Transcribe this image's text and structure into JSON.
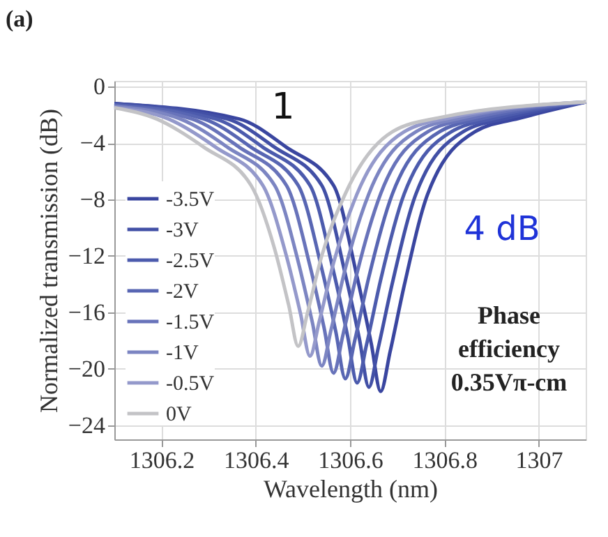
{
  "chart_data": {
    "type": "line",
    "title": "(a)",
    "xlabel": "Wavelength (nm)",
    "ylabel": "Normalized transmission (dB)",
    "xlim": [
      1306.1,
      1307.1
    ],
    "ylim": [
      -25,
      0.4
    ],
    "xticks": [
      1306.2,
      1306.4,
      1306.6,
      1306.8,
      1307
    ],
    "yticks": [
      0,
      -4,
      -8,
      -12,
      -16,
      -20,
      -24
    ],
    "grid": true,
    "legend": "left",
    "marker": "none",
    "line_style": "solid",
    "annotations": [
      "Phase efficiency 0.35Vπ-cm",
      "1",
      "4 dB"
    ],
    "series": [
      {
        "name": "-3.5V",
        "color": "#3a46a0",
        "x": [
          1306.1,
          1306.365,
          1306.465,
          1306.565,
          1306.615,
          1306.645,
          1306.665,
          1306.685,
          1306.715,
          1306.765,
          1306.865,
          1306.965,
          1307.1
        ],
        "values": [
          -1.2,
          -2.3,
          -4.3,
          -7,
          -13.5,
          -18.2,
          -21.6,
          -18.8,
          -14.1,
          -7.6,
          -3.2,
          -2.2,
          -1.1
        ]
      },
      {
        "name": "-3V",
        "color": "#4250a6",
        "x": [
          1306.1,
          1306.34,
          1306.44,
          1306.54,
          1306.59,
          1306.62,
          1306.64,
          1306.66,
          1306.69,
          1306.74,
          1306.84,
          1306.94,
          1307.1
        ],
        "values": [
          -1.2,
          -2.3,
          -4.3,
          -7,
          -13.3,
          -17.9,
          -21.3,
          -18.5,
          -13.9,
          -7.6,
          -3.2,
          -2.2,
          -1.1
        ]
      },
      {
        "name": "-2.5V",
        "color": "#4c5bad",
        "x": [
          1306.1,
          1306.315,
          1306.415,
          1306.515,
          1306.565,
          1306.595,
          1306.615,
          1306.635,
          1306.665,
          1306.715,
          1306.815,
          1306.915,
          1307.1
        ],
        "values": [
          -1.3,
          -2.3,
          -4.3,
          -7,
          -13.1,
          -17.7,
          -21,
          -18.3,
          -13.7,
          -7.6,
          -3.2,
          -2.2,
          -1.1
        ]
      },
      {
        "name": "-2V",
        "color": "#5866b3",
        "x": [
          1306.1,
          1306.29,
          1306.39,
          1306.49,
          1306.54,
          1306.57,
          1306.59,
          1306.61,
          1306.64,
          1306.69,
          1306.79,
          1306.89,
          1307.1
        ],
        "values": [
          -1.3,
          -2.3,
          -4.3,
          -7,
          -12.9,
          -17.4,
          -20.7,
          -18,
          -13.5,
          -7.6,
          -3.2,
          -2.2,
          -1.1
        ]
      },
      {
        "name": "-1.5V",
        "color": "#6873ba",
        "x": [
          1306.1,
          1306.265,
          1306.365,
          1306.465,
          1306.515,
          1306.545,
          1306.565,
          1306.585,
          1306.615,
          1306.665,
          1306.765,
          1306.865,
          1307.1
        ],
        "values": [
          -1.4,
          -2.3,
          -4.3,
          -7,
          -12.7,
          -17.1,
          -20.3,
          -17.6,
          -13.2,
          -7.6,
          -3.2,
          -2.2,
          -1.1
        ]
      },
      {
        "name": "-1V",
        "color": "#7c85c2",
        "x": [
          1306.1,
          1306.24,
          1306.34,
          1306.44,
          1306.49,
          1306.52,
          1306.54,
          1306.56,
          1306.59,
          1306.64,
          1306.74,
          1306.84,
          1307.1
        ],
        "values": [
          -1.4,
          -2.3,
          -4.3,
          -7,
          -12.4,
          -16.7,
          -19.8,
          -17.2,
          -12.9,
          -7.6,
          -3.2,
          -2.2,
          -1.1
        ]
      },
      {
        "name": "-0.5V",
        "color": "#9499cb",
        "x": [
          1306.1,
          1306.215,
          1306.315,
          1306.415,
          1306.465,
          1306.495,
          1306.515,
          1306.535,
          1306.565,
          1306.615,
          1306.715,
          1306.815,
          1307.1
        ],
        "values": [
          -1.5,
          -2.3,
          -4.3,
          -7,
          -12,
          -16.1,
          -19.1,
          -16.6,
          -12.5,
          -7.6,
          -3.2,
          -2.2,
          -1.1
        ]
      },
      {
        "name": "0V",
        "color": "#c3c3c6",
        "x": [
          1306.1,
          1306.19,
          1306.29,
          1306.39,
          1306.44,
          1306.47,
          1306.49,
          1306.51,
          1306.54,
          1306.59,
          1306.69,
          1306.79,
          1307.1
        ],
        "values": [
          -1.5,
          -2.3,
          -4.3,
          -7,
          -11.5,
          -15.5,
          -18.4,
          -16,
          -12,
          -7.6,
          -3.2,
          -2.2,
          -1.1
        ]
      }
    ]
  }
}
